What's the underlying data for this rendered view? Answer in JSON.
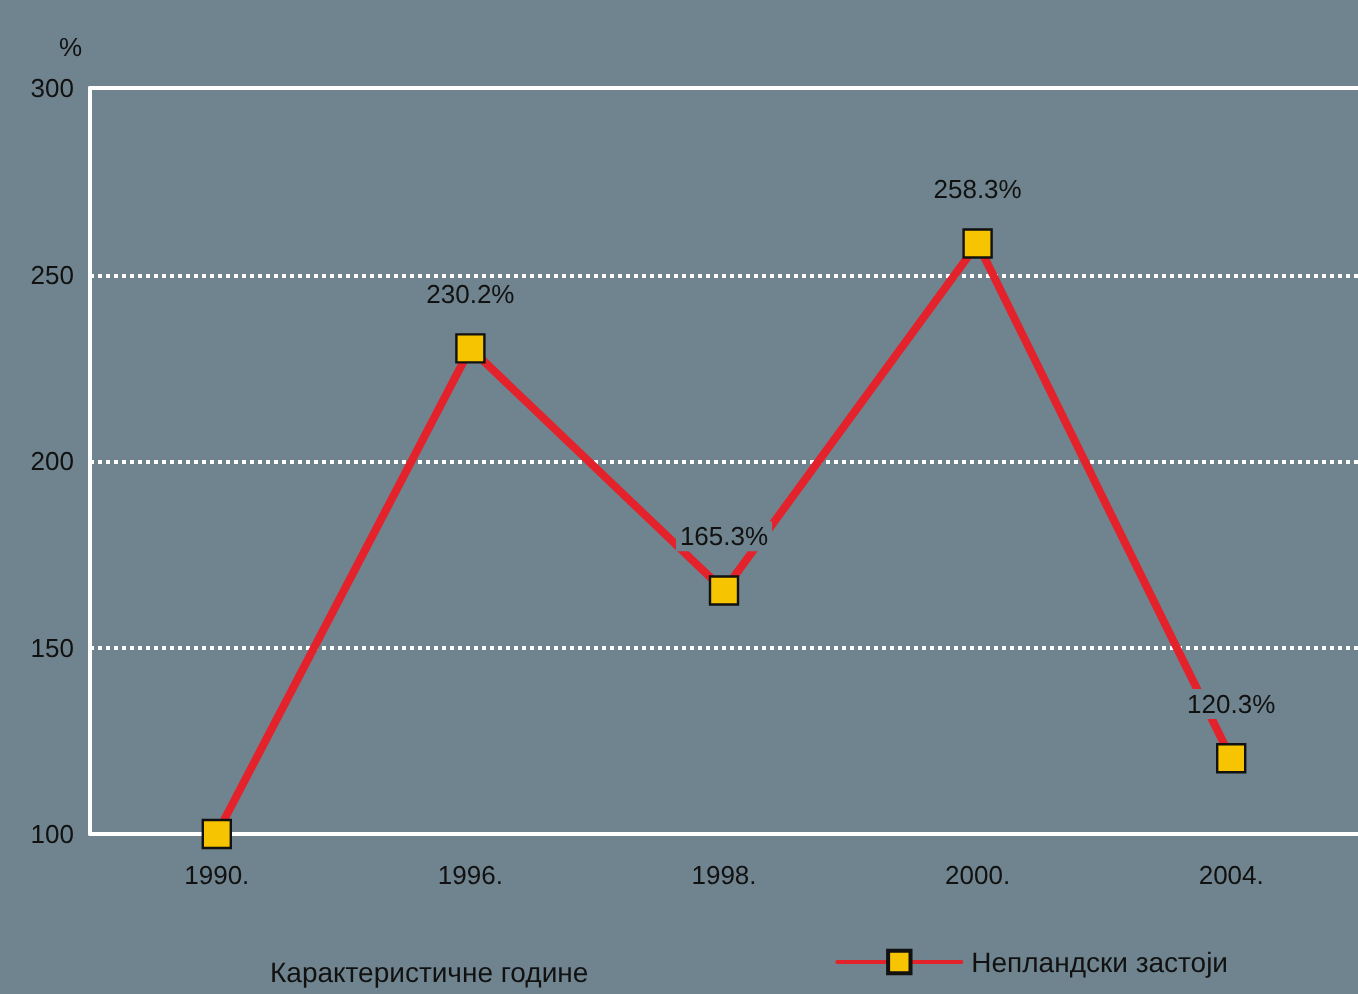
{
  "chart_data": {
    "type": "line",
    "xlabel": "Карактеристичне године",
    "ylabel": "%",
    "categories": [
      "1990.",
      "1996.",
      "1998.",
      "2000.",
      "2004."
    ],
    "series": [
      {
        "name": "Непландски застоји",
        "color": "#e3222b",
        "values": [
          100,
          230.2,
          165.3,
          258.3,
          120.3
        ],
        "value_labels": [
          null,
          "230.2%",
          "165.3%",
          "258.3%",
          "120.3%"
        ]
      }
    ],
    "ylim": [
      100,
      300
    ],
    "yticks": [
      100,
      150,
      200,
      250,
      300
    ],
    "grid": "y",
    "legend": "bottom",
    "marker": "square",
    "line_style": "solid"
  }
}
